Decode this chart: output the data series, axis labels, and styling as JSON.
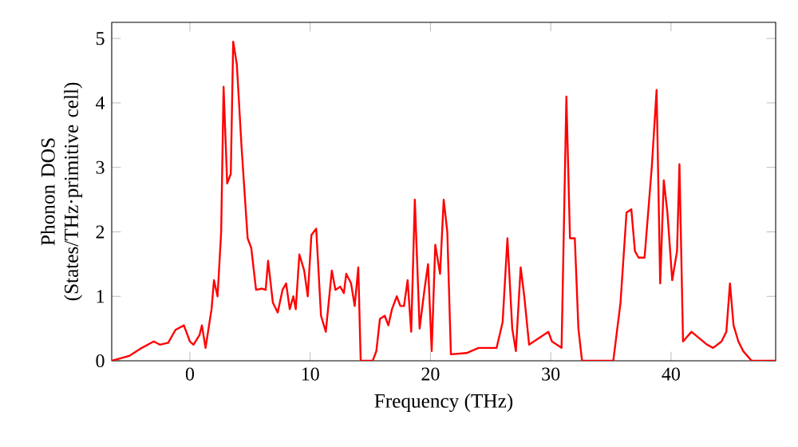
{
  "chart_data": {
    "type": "line",
    "xlabel": "Frequency (THz)",
    "ylabel": "Phonon DOS (States/THz·primitive cell)",
    "xlim": [
      -6.5,
      48.7
    ],
    "ylim": [
      0,
      5.25
    ],
    "xticks": [
      0,
      10,
      20,
      30,
      40
    ],
    "yticks": [
      0,
      1,
      2,
      3,
      4,
      5
    ],
    "grid": false,
    "series": [
      {
        "color": "#ff0000",
        "x": [
          -6.5,
          -5,
          -4,
          -3,
          -2.5,
          -1.8,
          -1.2,
          -0.5,
          0,
          0.3,
          0.8,
          1,
          1.3,
          1.8,
          2,
          2.3,
          2.6,
          2.8,
          3.1,
          3.4,
          3.6,
          3.9,
          4.3,
          4.8,
          5.1,
          5.5,
          6,
          6.3,
          6.5,
          6.9,
          7.3,
          7.7,
          8,
          8.3,
          8.6,
          8.8,
          9.1,
          9.5,
          9.8,
          10.1,
          10.5,
          10.9,
          11.3,
          11.8,
          12.1,
          12.5,
          12.8,
          13,
          13.4,
          13.7,
          14,
          14.2,
          15.2,
          15.5,
          15.8,
          16.2,
          16.5,
          16.8,
          17.2,
          17.5,
          17.8,
          18.1,
          18.4,
          18.7,
          19.1,
          19.5,
          19.8,
          20.1,
          20.4,
          20.8,
          21.1,
          21.4,
          21.7,
          23,
          24,
          25,
          25.5,
          26,
          26.4,
          26.8,
          27.1,
          27.5,
          27.8,
          28.2,
          28.6,
          29,
          29.8,
          30.1,
          30.9,
          31.3,
          31.6,
          32,
          32.3,
          32.6,
          35.2,
          35.8,
          36.3,
          36.7,
          37,
          37.3,
          37.8,
          38.4,
          38.8,
          39.1,
          39.4,
          39.7,
          40.1,
          40.5,
          40.7,
          41,
          41.7,
          43,
          43.5,
          44.2,
          44.6,
          44.9,
          45.2,
          45.6,
          46,
          46.7,
          48.7
        ],
        "values": [
          0,
          0.08,
          0.2,
          0.3,
          0.25,
          0.28,
          0.48,
          0.55,
          0.3,
          0.25,
          0.4,
          0.55,
          0.2,
          0.8,
          1.25,
          1.0,
          2.0,
          4.25,
          2.75,
          2.9,
          4.95,
          4.6,
          3.3,
          1.9,
          1.75,
          1.1,
          1.12,
          1.1,
          1.55,
          0.9,
          0.75,
          1.1,
          1.2,
          0.8,
          1.0,
          0.8,
          1.65,
          1.4,
          1.0,
          1.95,
          2.05,
          0.7,
          0.45,
          1.4,
          1.1,
          1.15,
          1.05,
          1.35,
          1.2,
          0.85,
          1.45,
          0,
          0,
          0.15,
          0.65,
          0.7,
          0.55,
          0.8,
          1.0,
          0.85,
          0.85,
          1.25,
          0.45,
          2.5,
          0.5,
          1.1,
          1.5,
          0.15,
          1.8,
          1.35,
          2.5,
          2.0,
          0.1,
          0.12,
          0.2,
          0.2,
          0.2,
          0.6,
          1.9,
          0.5,
          0.15,
          1.45,
          1.0,
          0.25,
          0.3,
          0.35,
          0.45,
          0.3,
          0.2,
          4.1,
          1.9,
          1.9,
          0.5,
          0,
          0,
          0.9,
          2.3,
          2.35,
          1.7,
          1.6,
          1.6,
          3.0,
          4.2,
          1.2,
          2.8,
          2.3,
          1.25,
          1.7,
          3.05,
          0.3,
          0.45,
          0.25,
          0.2,
          0.3,
          0.45,
          1.2,
          0.55,
          0.3,
          0.15,
          0,
          0
        ]
      }
    ]
  }
}
